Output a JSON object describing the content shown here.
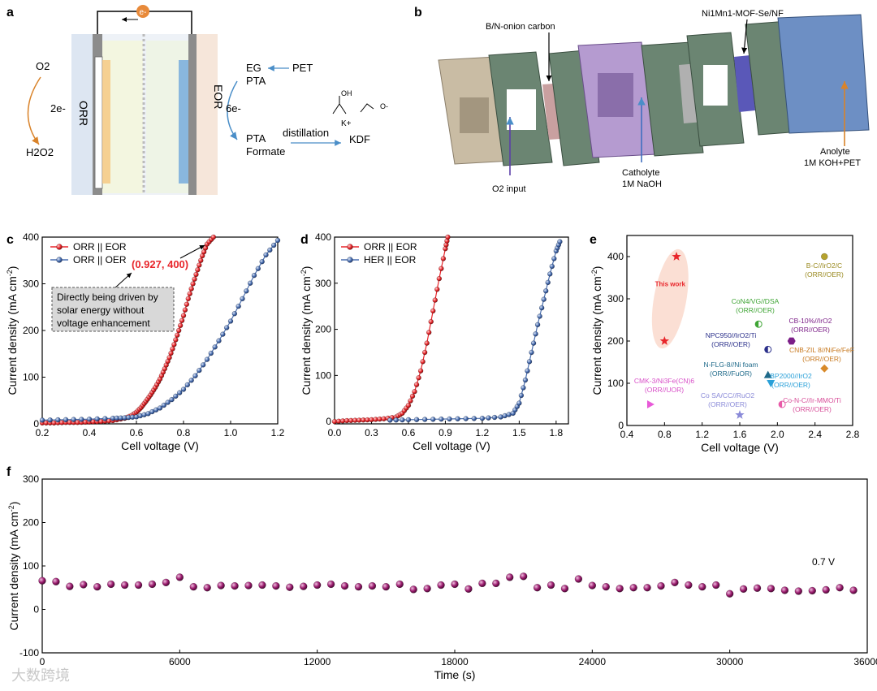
{
  "panels": {
    "a": {
      "letter": "a",
      "electron": "e-",
      "o2": "O2",
      "two_e": "2e-",
      "orr": "ORR",
      "h2o2": "H2O2",
      "eor": "EOR",
      "six_e": "6e-",
      "eg": "EG",
      "pta_top": "PTA",
      "pet": "PET",
      "pta_bottom": "PTA",
      "formate": "Formate",
      "distillation": "distillation",
      "kplus": "K+",
      "kdf": "KDF",
      "oh": "OH",
      "o_minus": "O-"
    },
    "b": {
      "letter": "b",
      "onion": "B/N-onion carbon",
      "mof": "Ni1Mn1-MOF-Se/NF",
      "o2_input": "O2 input",
      "catholyte": "Catholyte",
      "catholyte_sol": "1M NaOH",
      "anolyte": "Anolyte",
      "anolyte_sol": "1M KOH+PET"
    },
    "e_labels": {
      "this_work": "This work",
      "p1": "B-C//IrO2/C",
      "p1b": "(ORR//OER)",
      "p2": "CoN4/VG//DSA",
      "p2b": "(ORR//OER)",
      "p3": "CB-10%//IrO2",
      "p3b": "(ORR//OER)",
      "p4": "NPC950//IrO2/Ti",
      "p4b": "(ORR//OER)",
      "p5": "CNB-ZIL 8//NiFe/FeF",
      "p5b": "(ORR//OER)",
      "p6": "N-FLG-8//Ni foam",
      "p6b": "(ORR//FuOR)",
      "p7": "BP2000//IrO2",
      "p7b": "(ORR//OER)",
      "p8": "CMK-3/Ni3Fe(CN)6",
      "p8b": "(ORR//UOR)",
      "p9": "Co SA/CC//RuO2",
      "p9b": "(ORR//OER)",
      "p10": "Co-N-C//Ir-MMO/Ti",
      "p10b": "(ORR//OER)"
    },
    "f_annotation": "0.7 V",
    "watermark": "大数跨境"
  },
  "chart_data": [
    {
      "panel": "c",
      "type": "scatter",
      "xlabel": "Cell voltage (V)",
      "ylabel": "Current density (mA cm-2)",
      "xlim": [
        0.2,
        1.2
      ],
      "ylim": [
        0,
        400
      ],
      "xticks": [
        "0.2",
        "0.4",
        "0.6",
        "0.8",
        "1.0",
        "1.2"
      ],
      "yticks": [
        "0",
        "100",
        "200",
        "300",
        "400"
      ],
      "legend": "top-left",
      "series": [
        {
          "name": "ORR || EOR",
          "color": "#e8262b",
          "x": [
            0.2,
            0.25,
            0.3,
            0.35,
            0.4,
            0.45,
            0.5,
            0.55,
            0.58,
            0.6,
            0.62,
            0.64,
            0.66,
            0.68,
            0.7,
            0.72,
            0.74,
            0.76,
            0.78,
            0.8,
            0.82,
            0.84,
            0.86,
            0.88,
            0.9,
            0.927
          ],
          "y": [
            2,
            2,
            3,
            3,
            4,
            5,
            7,
            12,
            18,
            25,
            35,
            48,
            62,
            78,
            96,
            118,
            142,
            170,
            200,
            232,
            268,
            300,
            330,
            360,
            385,
            400
          ]
        },
        {
          "name": "ORR || OER",
          "color": "#4a6fb0",
          "x": [
            0.2,
            0.3,
            0.4,
            0.5,
            0.55,
            0.6,
            0.65,
            0.7,
            0.75,
            0.8,
            0.85,
            0.9,
            0.95,
            1.0,
            1.05,
            1.1,
            1.15,
            1.2
          ],
          "y": [
            8,
            9,
            10,
            12,
            13,
            15,
            22,
            34,
            52,
            74,
            103,
            138,
            178,
            220,
            268,
            318,
            362,
            393
          ]
        }
      ],
      "annotation_point": "(0.927, 400)",
      "annotation_box": [
        "Directly being driven by",
        "solar energy without",
        "voltage enhancement"
      ]
    },
    {
      "panel": "d",
      "type": "scatter",
      "xlabel": "Cell voltage (V)",
      "ylabel": "Current density (mA cm-2)",
      "xlim": [
        0.0,
        1.9
      ],
      "ylim": [
        -5,
        400
      ],
      "xticks": [
        "0.0",
        "0.3",
        "0.6",
        "0.9",
        "1.2",
        "1.5",
        "1.8"
      ],
      "yticks": [
        "0",
        "100",
        "200",
        "300",
        "400"
      ],
      "legend": "top-left",
      "series": [
        {
          "name": "ORR || EOR",
          "color": "#e8262b",
          "x": [
            0.0,
            0.1,
            0.2,
            0.3,
            0.4,
            0.5,
            0.55,
            0.6,
            0.65,
            0.7,
            0.75,
            0.8,
            0.85,
            0.9,
            0.92
          ],
          "y": [
            0,
            2,
            3,
            4,
            6,
            10,
            18,
            35,
            65,
            110,
            170,
            240,
            310,
            375,
            400
          ]
        },
        {
          "name": "HER || EOR",
          "color": "#4a6fb0",
          "x": [
            0.45,
            0.6,
            0.8,
            1.0,
            1.2,
            1.35,
            1.45,
            1.5,
            1.55,
            1.6,
            1.65,
            1.7,
            1.75,
            1.8,
            1.83
          ],
          "y": [
            3,
            4,
            5,
            6,
            7,
            10,
            18,
            40,
            90,
            150,
            210,
            265,
            320,
            370,
            390
          ]
        }
      ]
    },
    {
      "panel": "e",
      "type": "scatter",
      "xlabel": "Cell voltage (V)",
      "ylabel": "Current density (mA cm-2)",
      "xlim": [
        0.4,
        2.8
      ],
      "ylim": [
        0,
        450
      ],
      "xticks": [
        "0.4",
        "0.8",
        "1.2",
        "1.6",
        "2.0",
        "2.4",
        "2.8"
      ],
      "yticks": [
        "0",
        "100",
        "200",
        "300",
        "400"
      ],
      "points": [
        {
          "x": 0.927,
          "y": 400,
          "color": "#e8262b",
          "shape": "star"
        },
        {
          "x": 0.8,
          "y": 200,
          "color": "#e8262b",
          "shape": "star"
        },
        {
          "x": 2.5,
          "y": 400,
          "color": "#b5a22e",
          "shape": "circle"
        },
        {
          "x": 1.8,
          "y": 240,
          "color": "#3fa535",
          "shape": "halfcircle"
        },
        {
          "x": 2.15,
          "y": 200,
          "color": "#7b1e87",
          "shape": "hexagon"
        },
        {
          "x": 1.9,
          "y": 180,
          "color": "#2a2f8a",
          "shape": "halfcircle"
        },
        {
          "x": 2.5,
          "y": 135,
          "color": "#d88a2a",
          "shape": "diamond"
        },
        {
          "x": 1.9,
          "y": 120,
          "color": "#1f6a8a",
          "shape": "triangle-up"
        },
        {
          "x": 1.93,
          "y": 100,
          "color": "#2aa0d8",
          "shape": "triangle-down"
        },
        {
          "x": 0.65,
          "y": 50,
          "color": "#e85ad8",
          "shape": "triangle-right"
        },
        {
          "x": 1.6,
          "y": 25,
          "color": "#8a8ad8",
          "shape": "star"
        },
        {
          "x": 2.05,
          "y": 50,
          "color": "#e85aa8",
          "shape": "halfcircle"
        }
      ]
    },
    {
      "panel": "f",
      "type": "scatter",
      "xlabel": "Time (s)",
      "ylabel": "Current density (mA cm-2)",
      "xlim": [
        0,
        36000
      ],
      "ylim": [
        -100,
        300
      ],
      "xticks": [
        "0",
        "6000",
        "12000",
        "18000",
        "24000",
        "30000",
        "36000"
      ],
      "yticks": [
        "-100",
        "0",
        "100",
        "200",
        "300"
      ],
      "color": "#9b1b6e",
      "x": [
        0,
        600,
        1200,
        1800,
        2400,
        3000,
        3600,
        4200,
        4800,
        5400,
        6000,
        6600,
        7200,
        7800,
        8400,
        9000,
        9600,
        10200,
        10800,
        11400,
        12000,
        12600,
        13200,
        13800,
        14400,
        15000,
        15600,
        16200,
        16800,
        17400,
        18000,
        18600,
        19200,
        19800,
        20400,
        21000,
        21600,
        22200,
        22800,
        23400,
        24000,
        24600,
        25200,
        25800,
        26400,
        27000,
        27600,
        28200,
        28800,
        29400,
        30000,
        30600,
        31200,
        31800,
        32400,
        33000,
        33600,
        34200,
        34800,
        35400
      ],
      "y": [
        66,
        64,
        53,
        57,
        52,
        58,
        56,
        56,
        58,
        62,
        74,
        52,
        50,
        55,
        54,
        55,
        56,
        54,
        51,
        53,
        56,
        58,
        54,
        52,
        54,
        52,
        58,
        46,
        48,
        56,
        58,
        47,
        60,
        60,
        74,
        76,
        50,
        56,
        48,
        70,
        55,
        52,
        48,
        50,
        50,
        54,
        62,
        56,
        52,
        56,
        36,
        47,
        49,
        48,
        44,
        42,
        43,
        45,
        50,
        44
      ]
    }
  ]
}
